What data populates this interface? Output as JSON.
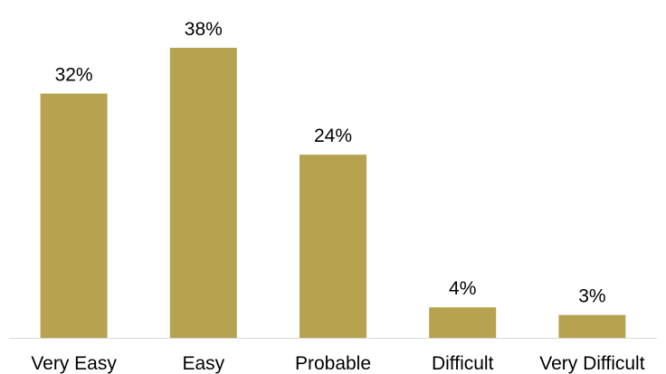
{
  "chart_data": {
    "type": "bar",
    "title": "",
    "xlabel": "",
    "ylabel": "",
    "categories": [
      "Very Easy",
      "Easy",
      "Probable",
      "Difficult",
      "Very Difficult"
    ],
    "values": [
      32,
      38,
      24,
      4,
      3
    ],
    "data_labels": [
      "32%",
      "38%",
      "24%",
      "4%",
      "3%"
    ],
    "ylim": [
      0,
      40
    ],
    "grid": false,
    "legend": "none",
    "bar_color": "#B5A350",
    "axis_color": "#D9D9D9"
  }
}
